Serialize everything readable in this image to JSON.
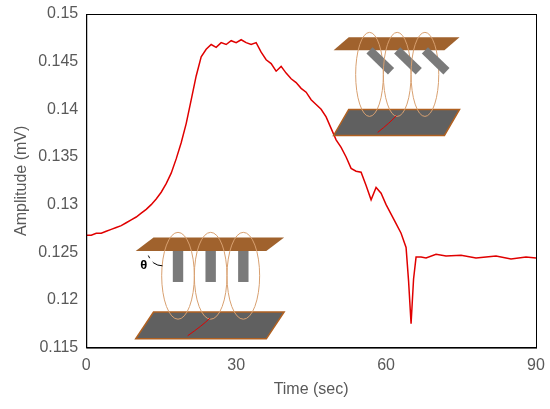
{
  "chart_data": {
    "type": "line",
    "x_label": "Time (sec)",
    "y_label": "Amplitude (mV)",
    "x": [
      0,
      1,
      2,
      3,
      4,
      5,
      6,
      7,
      8,
      9,
      10,
      11,
      12,
      13,
      14,
      15,
      16,
      17,
      18,
      19,
      20,
      21,
      22,
      23,
      24,
      25,
      26,
      27,
      28,
      29,
      30,
      31,
      32,
      33,
      34,
      35,
      36,
      37,
      38,
      39,
      40,
      41,
      42,
      43,
      44,
      45,
      46,
      47,
      48,
      49,
      50,
      51,
      52,
      53,
      54,
      55,
      56,
      57,
      58,
      59,
      60,
      61,
      62,
      63,
      64,
      64.5,
      65,
      65.5,
      66,
      67,
      68,
      70,
      72,
      75,
      78,
      80,
      82,
      85,
      88,
      90
    ],
    "values": [
      0.1268,
      0.1268,
      0.127,
      0.127,
      0.1272,
      0.1274,
      0.1276,
      0.1278,
      0.1281,
      0.1284,
      0.1287,
      0.1291,
      0.1295,
      0.13,
      0.1306,
      0.1313,
      0.1322,
      0.1333,
      0.1348,
      0.1365,
      0.1385,
      0.141,
      0.1435,
      0.1455,
      0.1463,
      0.1468,
      0.1465,
      0.147,
      0.1468,
      0.1472,
      0.147,
      0.1473,
      0.147,
      0.1468,
      0.147,
      0.146,
      0.1452,
      0.1448,
      0.144,
      0.1445,
      0.1438,
      0.1432,
      0.1428,
      0.1422,
      0.1418,
      0.141,
      0.1405,
      0.14,
      0.1392,
      0.138,
      0.1368,
      0.136,
      0.135,
      0.1338,
      0.1335,
      0.1334,
      0.132,
      0.1305,
      0.1318,
      0.1312,
      0.13,
      0.129,
      0.128,
      0.127,
      0.1255,
      0.122,
      0.1175,
      0.1222,
      0.1245,
      0.1245,
      0.1244,
      0.1248,
      0.1246,
      0.1247,
      0.1244,
      0.1245,
      0.1246,
      0.1243,
      0.1245,
      0.1244
    ],
    "color": "#e00000",
    "line_style": "solid",
    "marker": "none",
    "xlim": [
      0,
      90
    ],
    "xticks": [
      0,
      30,
      60,
      90
    ],
    "ylim": [
      0.115,
      0.15
    ],
    "yticks": [
      0.115,
      0.12,
      0.125,
      0.13,
      0.135,
      0.14,
      0.145,
      0.15
    ],
    "grid": false,
    "annotations": [
      "θ"
    ]
  }
}
